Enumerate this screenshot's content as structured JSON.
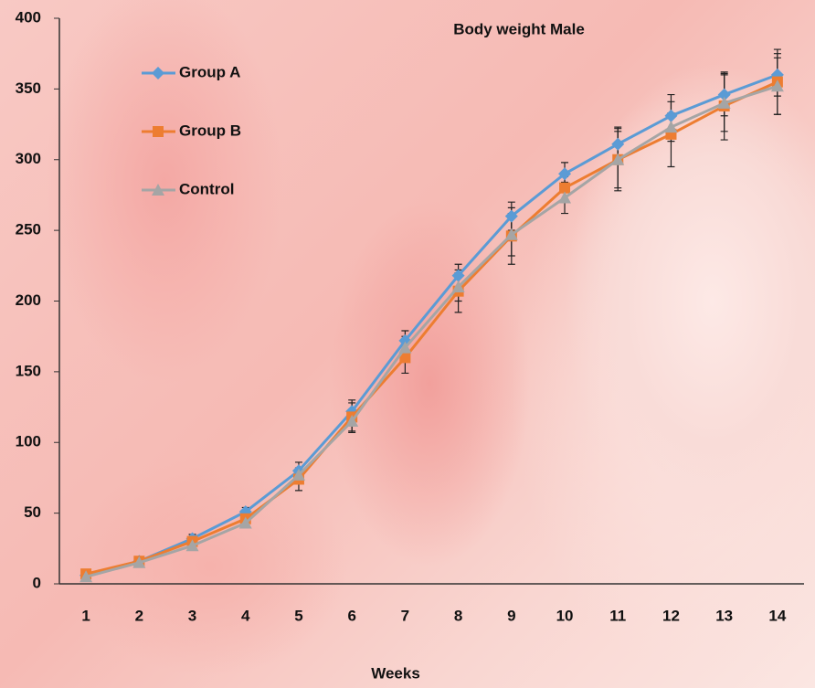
{
  "chart_data": {
    "type": "line",
    "title": "Body weight Male",
    "x_label": "Weeks",
    "categories": [
      "1",
      "2",
      "3",
      "4",
      "5",
      "6",
      "7",
      "8",
      "9",
      "10",
      "11",
      "12",
      "13",
      "14"
    ],
    "series": [
      {
        "name": "Group A",
        "color": "#5b9bd5",
        "marker": "diamond",
        "values": [
          6,
          16,
          32,
          51,
          80,
          122,
          172,
          218,
          260,
          290,
          311,
          331,
          346,
          360
        ],
        "errors": [
          2,
          2,
          3,
          3,
          6,
          8,
          7,
          8,
          10,
          8,
          12,
          15,
          15,
          15
        ]
      },
      {
        "name": "Group B",
        "color": "#ed7d31",
        "marker": "square",
        "values": [
          7,
          16,
          30,
          46,
          74,
          118,
          160,
          207,
          246,
          280,
          300,
          318,
          338,
          355
        ],
        "errors": [
          2,
          2,
          3,
          3,
          8,
          10,
          11,
          15,
          20,
          8,
          22,
          23,
          24,
          23
        ]
      },
      {
        "name": "Control",
        "color": "#a5a5a5",
        "marker": "triangle",
        "values": [
          5,
          15,
          27,
          43,
          77,
          115,
          167,
          210,
          247,
          273,
          300,
          323,
          340,
          352
        ],
        "errors": [
          2,
          2,
          3,
          3,
          5,
          8,
          8,
          10,
          15,
          11,
          20,
          10,
          20,
          20
        ]
      }
    ],
    "ylim": [
      0,
      400
    ],
    "yticks": [
      0,
      50,
      100,
      150,
      200,
      250,
      300,
      350,
      400
    ],
    "grid": false,
    "legend": "top-left"
  }
}
